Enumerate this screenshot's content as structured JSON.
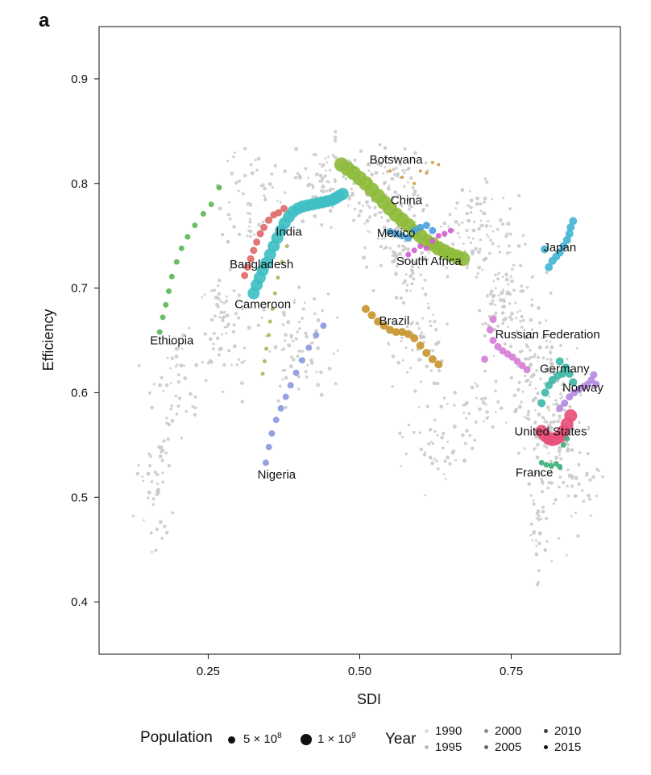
{
  "panel_label": "a",
  "chart_data": {
    "type": "scatter",
    "xlabel": "SDI",
    "ylabel": "Efficiency",
    "xlim": [
      0.07,
      0.93
    ],
    "ylim": [
      0.35,
      0.95
    ],
    "xticks": [
      {
        "value": 0.25,
        "label": "0.25"
      },
      {
        "value": 0.5,
        "label": "0.50"
      },
      {
        "value": 0.75,
        "label": "0.75"
      }
    ],
    "yticks": [
      {
        "value": 0.4,
        "label": "0.4"
      },
      {
        "value": 0.5,
        "label": "0.5"
      },
      {
        "value": 0.6,
        "label": "0.6"
      },
      {
        "value": 0.7,
        "label": "0.7"
      },
      {
        "value": 0.8,
        "label": "0.8"
      },
      {
        "value": 0.9,
        "label": "0.9"
      }
    ],
    "grid": false,
    "legend_position": "bottom",
    "background_color": "#c8c8c8",
    "series": [
      {
        "name": "Ethiopia",
        "color": "#5cb85c",
        "size": 3.5,
        "label_at": [
          0.19,
          0.646
        ],
        "points": [
          [
            0.17,
            0.658
          ],
          [
            0.175,
            0.672
          ],
          [
            0.18,
            0.684
          ],
          [
            0.185,
            0.697
          ],
          [
            0.19,
            0.711
          ],
          [
            0.198,
            0.725
          ],
          [
            0.206,
            0.738
          ],
          [
            0.216,
            0.749
          ],
          [
            0.228,
            0.76
          ],
          [
            0.242,
            0.771
          ],
          [
            0.255,
            0.78
          ],
          [
            0.268,
            0.796
          ]
        ]
      },
      {
        "name": "Nigeria",
        "color": "#8c9ae0",
        "size": 4,
        "label_at": [
          0.363,
          0.518
        ],
        "points": [
          [
            0.345,
            0.533
          ],
          [
            0.35,
            0.548
          ],
          [
            0.355,
            0.561
          ],
          [
            0.362,
            0.574
          ],
          [
            0.37,
            0.585
          ],
          [
            0.378,
            0.596
          ],
          [
            0.386,
            0.607
          ],
          [
            0.395,
            0.619
          ],
          [
            0.405,
            0.631
          ],
          [
            0.416,
            0.643
          ],
          [
            0.428,
            0.655
          ],
          [
            0.44,
            0.664
          ]
        ]
      },
      {
        "name": "Cameroon",
        "color": "#b0b55a",
        "size": 2.5,
        "label_at": [
          0.34,
          0.681
        ],
        "points": [
          [
            0.34,
            0.618
          ],
          [
            0.343,
            0.63
          ],
          [
            0.346,
            0.642
          ],
          [
            0.35,
            0.655
          ],
          [
            0.352,
            0.668
          ],
          [
            0.356,
            0.68
          ],
          [
            0.36,
            0.695
          ],
          [
            0.365,
            0.71
          ],
          [
            0.372,
            0.725
          ],
          [
            0.38,
            0.74
          ]
        ]
      },
      {
        "name": "Bangladesh",
        "color": "#e06b6b",
        "size": 4.5,
        "label_at": [
          0.338,
          0.719
        ],
        "points": [
          [
            0.31,
            0.712
          ],
          [
            0.315,
            0.72
          ],
          [
            0.32,
            0.728
          ],
          [
            0.325,
            0.736
          ],
          [
            0.33,
            0.744
          ],
          [
            0.336,
            0.752
          ],
          [
            0.342,
            0.758
          ],
          [
            0.35,
            0.765
          ],
          [
            0.358,
            0.77
          ],
          [
            0.366,
            0.772
          ],
          [
            0.375,
            0.776
          ]
        ]
      },
      {
        "name": "India",
        "color": "#3fbfc4",
        "size": 7.5,
        "label_at": [
          0.383,
          0.75
        ],
        "points": [
          [
            0.325,
            0.695
          ],
          [
            0.33,
            0.703
          ],
          [
            0.335,
            0.71
          ],
          [
            0.34,
            0.717
          ],
          [
            0.346,
            0.724
          ],
          [
            0.352,
            0.732
          ],
          [
            0.358,
            0.74
          ],
          [
            0.364,
            0.748
          ],
          [
            0.37,
            0.755
          ],
          [
            0.376,
            0.762
          ],
          [
            0.383,
            0.768
          ],
          [
            0.39,
            0.773
          ],
          [
            0.398,
            0.776
          ],
          [
            0.406,
            0.778
          ],
          [
            0.414,
            0.779
          ],
          [
            0.422,
            0.78
          ],
          [
            0.43,
            0.781
          ],
          [
            0.438,
            0.782
          ],
          [
            0.446,
            0.783
          ],
          [
            0.454,
            0.784
          ],
          [
            0.46,
            0.786
          ],
          [
            0.466,
            0.788
          ],
          [
            0.472,
            0.79
          ]
        ]
      },
      {
        "name": "China",
        "color": "#8fbc3c",
        "size": 9,
        "label_at": [
          0.577,
          0.78
        ],
        "points": [
          [
            0.47,
            0.818
          ],
          [
            0.48,
            0.814
          ],
          [
            0.49,
            0.81
          ],
          [
            0.5,
            0.805
          ],
          [
            0.51,
            0.8
          ],
          [
            0.52,
            0.794
          ],
          [
            0.53,
            0.788
          ],
          [
            0.54,
            0.782
          ],
          [
            0.55,
            0.776
          ],
          [
            0.56,
            0.77
          ],
          [
            0.57,
            0.765
          ],
          [
            0.58,
            0.76
          ],
          [
            0.59,
            0.754
          ],
          [
            0.6,
            0.75
          ],
          [
            0.61,
            0.745
          ],
          [
            0.62,
            0.742
          ],
          [
            0.63,
            0.738
          ],
          [
            0.64,
            0.735
          ],
          [
            0.65,
            0.732
          ],
          [
            0.66,
            0.73
          ],
          [
            0.67,
            0.728
          ]
        ]
      },
      {
        "name": "Botswana",
        "color": "#d79a3a",
        "size": 2,
        "label_at": [
          0.56,
          0.819
        ],
        "points": [
          [
            0.55,
            0.812
          ],
          [
            0.57,
            0.806
          ],
          [
            0.59,
            0.8
          ],
          [
            0.61,
            0.81
          ],
          [
            0.62,
            0.82
          ],
          [
            0.63,
            0.818
          ],
          [
            0.6,
            0.812
          ]
        ]
      },
      {
        "name": "Mexico",
        "color": "#4aa3e0",
        "size": 4.5,
        "label_at": [
          0.56,
          0.749
        ],
        "points": [
          [
            0.55,
            0.754
          ],
          [
            0.56,
            0.752
          ],
          [
            0.57,
            0.75
          ],
          [
            0.58,
            0.748
          ],
          [
            0.59,
            0.755
          ],
          [
            0.6,
            0.758
          ],
          [
            0.61,
            0.76
          ],
          [
            0.62,
            0.755
          ]
        ]
      },
      {
        "name": "South Africa",
        "color": "#d35fd3",
        "size": 3.5,
        "label_at": [
          0.614,
          0.722
        ],
        "points": [
          [
            0.58,
            0.732
          ],
          [
            0.59,
            0.736
          ],
          [
            0.6,
            0.74
          ],
          [
            0.61,
            0.738
          ],
          [
            0.62,
            0.745
          ],
          [
            0.63,
            0.75
          ],
          [
            0.64,
            0.752
          ],
          [
            0.65,
            0.755
          ]
        ]
      },
      {
        "name": "Brazil",
        "color": "#c8962e",
        "size": 5,
        "label_at": [
          0.557,
          0.665
        ],
        "points": [
          [
            0.51,
            0.68
          ],
          [
            0.52,
            0.674
          ],
          [
            0.53,
            0.668
          ],
          [
            0.54,
            0.664
          ],
          [
            0.55,
            0.66
          ],
          [
            0.56,
            0.658
          ],
          [
            0.57,
            0.658
          ],
          [
            0.58,
            0.656
          ],
          [
            0.59,
            0.652
          ],
          [
            0.6,
            0.645
          ],
          [
            0.61,
            0.638
          ],
          [
            0.62,
            0.632
          ],
          [
            0.63,
            0.627
          ]
        ]
      },
      {
        "name": "Russian Federation",
        "color": "#d67fd6",
        "size": 4.5,
        "label_at": [
          0.81,
          0.652
        ],
        "points": [
          [
            0.72,
            0.67
          ],
          [
            0.715,
            0.66
          ],
          [
            0.72,
            0.65
          ],
          [
            0.728,
            0.644
          ],
          [
            0.736,
            0.64
          ],
          [
            0.744,
            0.637
          ],
          [
            0.752,
            0.634
          ],
          [
            0.76,
            0.63
          ],
          [
            0.768,
            0.626
          ],
          [
            0.776,
            0.622
          ],
          [
            0.706,
            0.632
          ]
        ]
      },
      {
        "name": "Japan",
        "color": "#45b5d6",
        "size": 5,
        "label_at": [
          0.83,
          0.735
        ],
        "points": [
          [
            0.812,
            0.72
          ],
          [
            0.818,
            0.726
          ],
          [
            0.824,
            0.73
          ],
          [
            0.83,
            0.734
          ],
          [
            0.836,
            0.74
          ],
          [
            0.842,
            0.746
          ],
          [
            0.846,
            0.752
          ],
          [
            0.848,
            0.758
          ],
          [
            0.852,
            0.764
          ],
          [
            0.805,
            0.737
          ]
        ]
      },
      {
        "name": "Germany",
        "color": "#3fb8a8",
        "size": 5,
        "label_at": [
          0.838,
          0.619
        ],
        "points": [
          [
            0.8,
            0.59
          ],
          [
            0.806,
            0.6
          ],
          [
            0.812,
            0.607
          ],
          [
            0.818,
            0.612
          ],
          [
            0.826,
            0.616
          ],
          [
            0.834,
            0.618
          ],
          [
            0.84,
            0.624
          ],
          [
            0.846,
            0.618
          ],
          [
            0.852,
            0.61
          ],
          [
            0.83,
            0.63
          ]
        ]
      },
      {
        "name": "Norway",
        "color": "#b58be0",
        "size": 4.5,
        "label_at": [
          0.868,
          0.601
        ],
        "points": [
          [
            0.83,
            0.585
          ],
          [
            0.838,
            0.59
          ],
          [
            0.846,
            0.596
          ],
          [
            0.854,
            0.6
          ],
          [
            0.862,
            0.603
          ],
          [
            0.87,
            0.606
          ],
          [
            0.876,
            0.608
          ],
          [
            0.882,
            0.612
          ],
          [
            0.886,
            0.617
          ],
          [
            0.89,
            0.608
          ]
        ]
      },
      {
        "name": "United States",
        "color": "#e8507a",
        "size": 8,
        "label_at": [
          0.815,
          0.559
        ],
        "points": [
          [
            0.8,
            0.563
          ],
          [
            0.806,
            0.559
          ],
          [
            0.812,
            0.556
          ],
          [
            0.818,
            0.555
          ],
          [
            0.824,
            0.556
          ],
          [
            0.83,
            0.558
          ],
          [
            0.836,
            0.563
          ],
          [
            0.842,
            0.57
          ],
          [
            0.848,
            0.578
          ]
        ]
      },
      {
        "name": "France",
        "color": "#3fb07a",
        "size": 3.5,
        "label_at": [
          0.788,
          0.52
        ],
        "points": [
          [
            0.8,
            0.533
          ],
          [
            0.808,
            0.531
          ],
          [
            0.816,
            0.53
          ],
          [
            0.824,
            0.532
          ],
          [
            0.83,
            0.529
          ],
          [
            0.836,
            0.55
          ],
          [
            0.842,
            0.556
          ]
        ]
      }
    ]
  },
  "legend": {
    "population_title": "Population",
    "pop_small": "5 × 10",
    "pop_small_exp": "8",
    "pop_large": "1 × 10",
    "pop_large_exp": "9",
    "year_title": "Year",
    "years": [
      "1990",
      "1995",
      "2000",
      "2005",
      "2010",
      "2015"
    ],
    "year_colors": [
      "#dcdcdc",
      "#bdbdbd",
      "#8f8f8f",
      "#6a6a6a",
      "#3f3f3f",
      "#111111"
    ]
  }
}
